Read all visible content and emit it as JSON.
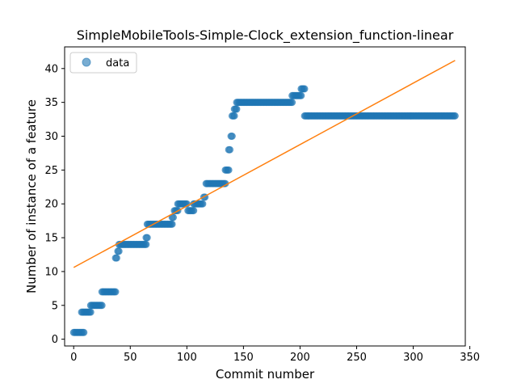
{
  "chart_data": {
    "type": "scatter",
    "title": "SimpleMobileTools-Simple-Clock_extension_function-linear",
    "xlabel": "Commit number",
    "ylabel": "Number of instance of a feature",
    "xlim": [
      -8,
      346
    ],
    "ylim": [
      -1.0,
      43.2
    ],
    "xticks": [
      0,
      50,
      100,
      150,
      200,
      250,
      300,
      350
    ],
    "yticks": [
      0,
      5,
      10,
      15,
      20,
      25,
      30,
      35,
      40
    ],
    "grid": false,
    "legend": {
      "placement": "top-left",
      "entries": [
        "data"
      ]
    },
    "colors": {
      "data": "#1f77b4",
      "fit": "#ff7f0e"
    },
    "series": [
      {
        "name": "data",
        "kind": "scatter",
        "segments": [
          {
            "x0": 0,
            "x1": 4,
            "y": 1
          },
          {
            "x0": 5,
            "x1": 9,
            "y": 1
          },
          {
            "x0": 7,
            "x1": 15,
            "y": 4
          },
          {
            "x0": 15,
            "x1": 25,
            "y": 5
          },
          {
            "x0": 25,
            "x1": 37,
            "y": 7
          },
          {
            "x0": 37,
            "x1": 38,
            "y": 12
          },
          {
            "x0": 39,
            "x1": 40,
            "y": 13
          },
          {
            "x0": 40,
            "x1": 64,
            "y": 14
          },
          {
            "x0": 64,
            "x1": 65,
            "y": 15
          },
          {
            "x0": 65,
            "x1": 87,
            "y": 17
          },
          {
            "x0": 87,
            "x1": 88,
            "y": 18
          },
          {
            "x0": 89,
            "x1": 92,
            "y": 19
          },
          {
            "x0": 92,
            "x1": 100,
            "y": 20
          },
          {
            "x0": 101,
            "x1": 106,
            "y": 19
          },
          {
            "x0": 106,
            "x1": 114,
            "y": 20
          },
          {
            "x0": 115,
            "x1": 116,
            "y": 21
          },
          {
            "x0": 117,
            "x1": 134,
            "y": 23
          },
          {
            "x0": 134,
            "x1": 137,
            "y": 25
          },
          {
            "x0": 137,
            "x1": 138,
            "y": 28
          },
          {
            "x0": 139,
            "x1": 140,
            "y": 30
          },
          {
            "x0": 140,
            "x1": 142,
            "y": 33
          },
          {
            "x0": 142,
            "x1": 144,
            "y": 34
          },
          {
            "x0": 144,
            "x1": 193,
            "y": 35
          },
          {
            "x0": 193,
            "x1": 201,
            "y": 36
          },
          {
            "x0": 201,
            "x1": 204,
            "y": 37
          },
          {
            "x0": 204,
            "x1": 337,
            "y": 33
          }
        ]
      },
      {
        "name": "",
        "kind": "line",
        "x": [
          0,
          337
        ],
        "y": [
          10.6,
          41.2
        ]
      }
    ]
  }
}
